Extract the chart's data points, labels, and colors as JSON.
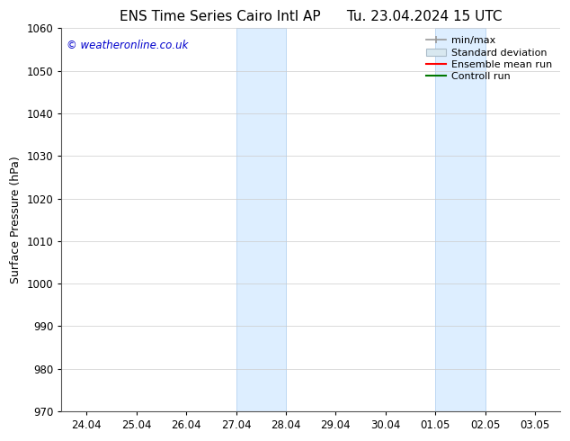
{
  "title_left": "ENS Time Series Cairo Intl AP",
  "title_right": "Tu. 23.04.2024 15 UTC",
  "ylabel": "Surface Pressure (hPa)",
  "ylim": [
    970,
    1060
  ],
  "yticks": [
    970,
    980,
    990,
    1000,
    1010,
    1020,
    1030,
    1040,
    1050,
    1060
  ],
  "xlabel_dates": [
    "24.04",
    "25.04",
    "26.04",
    "27.04",
    "28.04",
    "29.04",
    "30.04",
    "01.05",
    "02.05",
    "03.05"
  ],
  "watermark": "© weatheronline.co.uk",
  "watermark_color": "#0000cc",
  "shaded_regions": [
    {
      "xstart": 3.0,
      "xend": 4.0
    },
    {
      "xstart": 7.0,
      "xend": 8.0
    }
  ],
  "shaded_color": "#ddeeff",
  "shaded_edge_color": "#aaccee",
  "bg_color": "#ffffff",
  "grid_color": "#cccccc",
  "spine_color": "#555555",
  "title_fontsize": 11,
  "axis_label_fontsize": 9,
  "tick_fontsize": 8.5,
  "legend_fontsize": 8,
  "watermark_fontsize": 8.5
}
